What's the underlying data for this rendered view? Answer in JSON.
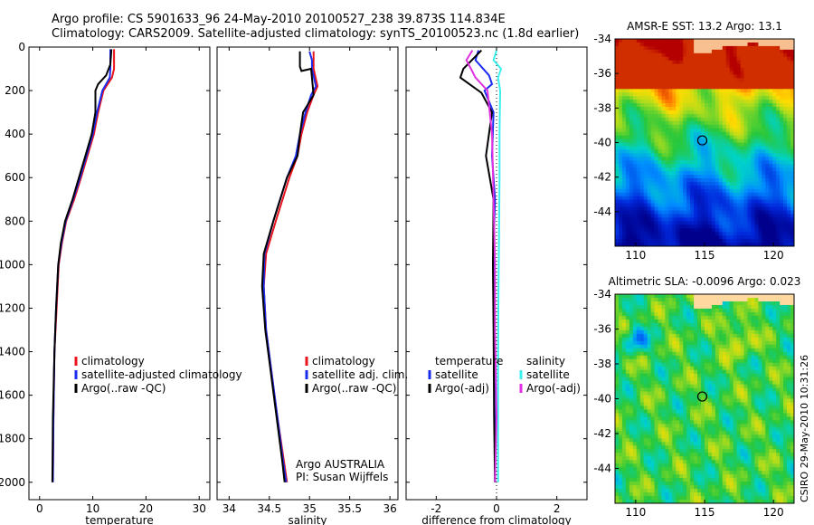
{
  "header": {
    "line1": "Argo profile: CS 5901633_96 24-May-2010 20100527_238 39.873S 114.834E",
    "line2": "Climatology: CARS2009. Satellite-adjusted climatology: synTS_20100523.nc (1.8d earlier)"
  },
  "side_stamp": "CSIRO 29-May-2010 10:31:26",
  "colors": {
    "red": "#e8141e",
    "blue": "#1a2cf0",
    "black": "#000000",
    "cyan": "#3cf0f0",
    "magenta": "#e030e0"
  },
  "chart_data": [
    {
      "type": "line",
      "id": "temperature",
      "xlabel": "temperature",
      "xlim": [
        -2,
        32
      ],
      "xticks": [
        0,
        10,
        20,
        30
      ],
      "ylim": [
        2080,
        0
      ],
      "yticks": [
        0,
        200,
        400,
        600,
        800,
        1000,
        1200,
        1400,
        1600,
        1800,
        2000
      ],
      "legend": [
        "climatology",
        "satellite-adjusted climatology",
        "Argo(..raw -QC)"
      ],
      "series": [
        {
          "name": "climatology",
          "color": "red",
          "x": [
            14.0,
            14.0,
            13.6,
            12.0,
            11.0,
            10.2,
            9.0,
            7.8,
            6.5,
            5.0,
            4.2,
            3.6,
            3.2,
            2.8,
            2.6,
            2.5
          ],
          "y": [
            10,
            100,
            140,
            200,
            300,
            400,
            500,
            600,
            700,
            800,
            900,
            1000,
            1200,
            1400,
            1700,
            2000
          ]
        },
        {
          "name": "satellite-adjusted climatology",
          "color": "blue",
          "x": [
            13.3,
            13.3,
            13.2,
            11.8,
            10.8,
            10.0,
            8.8,
            7.6,
            6.3,
            4.9,
            4.1,
            3.5,
            3.1,
            2.8,
            2.6,
            2.5
          ],
          "y": [
            10,
            100,
            140,
            200,
            300,
            400,
            500,
            600,
            700,
            800,
            900,
            1000,
            1200,
            1400,
            1700,
            2000
          ]
        },
        {
          "name": "Argo(..raw -QC)",
          "color": "black",
          "x": [
            13.5,
            13.3,
            12.5,
            11.0,
            10.5,
            10.5,
            9.8,
            8.6,
            7.4,
            6.2,
            4.8,
            4.0,
            3.5,
            3.1,
            2.8,
            2.5,
            2.4
          ],
          "y": [
            10,
            80,
            130,
            170,
            200,
            300,
            400,
            500,
            600,
            700,
            800,
            900,
            1000,
            1200,
            1400,
            1700,
            2000
          ]
        }
      ]
    },
    {
      "type": "line",
      "id": "salinity",
      "xlabel": "salinity",
      "xlim": [
        33.85,
        36.1
      ],
      "xticks": [
        34,
        34.5,
        35,
        35.5,
        36
      ],
      "ylim": [
        2080,
        0
      ],
      "legend": [
        "climatology",
        "satellite adj. clim.",
        "Argo(..raw -QC)"
      ],
      "annotation": [
        "Argo AUSTRALIA",
        "PI: Susan Wijffels"
      ],
      "series": [
        {
          "name": "climatology",
          "color": "red",
          "x": [
            35.05,
            35.05,
            35.05,
            35.1,
            35.05,
            34.97,
            34.9,
            34.85,
            34.75,
            34.58,
            34.46,
            34.43,
            34.46,
            34.53,
            34.6,
            34.68,
            34.72
          ],
          "y": [
            20,
            60,
            100,
            180,
            220,
            300,
            400,
            500,
            600,
            800,
            950,
            1100,
            1300,
            1500,
            1700,
            1900,
            2000
          ]
        },
        {
          "name": "satellite adj. clim.",
          "color": "blue",
          "x": [
            35.0,
            35.03,
            35.03,
            35.08,
            35.02,
            34.95,
            34.88,
            34.83,
            34.72,
            34.55,
            34.44,
            34.43,
            34.46,
            34.53,
            34.6,
            34.67,
            34.71
          ],
          "y": [
            20,
            60,
            100,
            180,
            220,
            300,
            400,
            500,
            600,
            800,
            950,
            1100,
            1300,
            1500,
            1700,
            1900,
            2000
          ]
        },
        {
          "name": "Argo(..raw -QC)",
          "color": "black",
          "x": [
            34.88,
            34.88,
            34.9,
            35.02,
            35.05,
            34.92,
            34.88,
            34.85,
            34.72,
            34.55,
            34.43,
            34.41,
            34.45,
            34.52,
            34.59,
            34.66,
            34.69
          ],
          "y": [
            20,
            90,
            110,
            100,
            220,
            300,
            400,
            500,
            600,
            800,
            950,
            1100,
            1300,
            1500,
            1700,
            1900,
            2000
          ]
        }
      ]
    },
    {
      "type": "line",
      "id": "difference",
      "xlabel": "difference from climatology",
      "xlim": [
        -3.0,
        3.0
      ],
      "xticks": [
        -2,
        0,
        2
      ],
      "ylim": [
        2080,
        0
      ],
      "legend_left": [
        "temperature",
        "satellite",
        "Argo(-adj)"
      ],
      "legend_right": [
        "salinity",
        "satellite",
        "Argo(-adj)"
      ],
      "series": [
        {
          "name": "temperature satellite",
          "color": "blue",
          "x": [
            -0.6,
            -0.7,
            -0.25,
            -0.15,
            -0.4,
            -0.1,
            -0.15,
            -0.05,
            -0.1,
            -0.08,
            -0.08,
            -0.05,
            -0.05
          ],
          "y": [
            15,
            60,
            130,
            170,
            200,
            300,
            500,
            700,
            900,
            1200,
            1500,
            1800,
            2000
          ]
        },
        {
          "name": "temperature Argo(-adj)",
          "color": "black",
          "x": [
            -0.5,
            -1.1,
            -1.2,
            -0.9,
            -0.5,
            -0.15,
            -0.35,
            -0.1,
            -0.12,
            -0.1,
            -0.08,
            -0.05
          ],
          "y": [
            15,
            100,
            140,
            170,
            210,
            300,
            500,
            700,
            1000,
            1300,
            1700,
            2000
          ]
        },
        {
          "name": "salinity satellite",
          "color": "cyan",
          "x": [
            0.0,
            -0.1,
            0.15,
            0.05,
            0.12,
            0.1,
            0.1,
            0.08,
            0.06,
            0.05,
            0.05,
            0.05
          ],
          "y": [
            15,
            60,
            100,
            140,
            200,
            400,
            600,
            900,
            1200,
            1500,
            1800,
            2000
          ]
        },
        {
          "name": "salinity Argo(-adj)",
          "color": "magenta",
          "x": [
            -0.8,
            -1.0,
            -0.85,
            -0.7,
            -0.3,
            -0.15,
            -0.1,
            -0.05,
            -0.05,
            0.0,
            -0.05
          ],
          "y": [
            15,
            60,
            100,
            140,
            200,
            400,
            700,
            1000,
            1300,
            1700,
            2000
          ]
        }
      ]
    },
    {
      "type": "heatmap",
      "id": "sst_map",
      "title": "AMSR-E SST: 13.2 Argo: 13.1",
      "xlim": [
        108.5,
        121.5
      ],
      "ylim": [
        -46,
        -34
      ],
      "xticks": [
        110,
        115,
        120
      ],
      "yticks": [
        -34,
        -36,
        -38,
        -40,
        -42,
        -44
      ],
      "argo_position": [
        114.834,
        -39.873
      ]
    },
    {
      "type": "heatmap",
      "id": "sla_map",
      "title": "Altimetric SLA: -0.0096 Argo: 0.023",
      "xlim": [
        108.5,
        121.5
      ],
      "ylim": [
        -46,
        -34
      ],
      "xticks": [
        110,
        115,
        120
      ],
      "yticks": [
        -34,
        -36,
        -38,
        -40,
        -42,
        -44
      ],
      "argo_position": [
        114.834,
        -39.873
      ]
    }
  ]
}
